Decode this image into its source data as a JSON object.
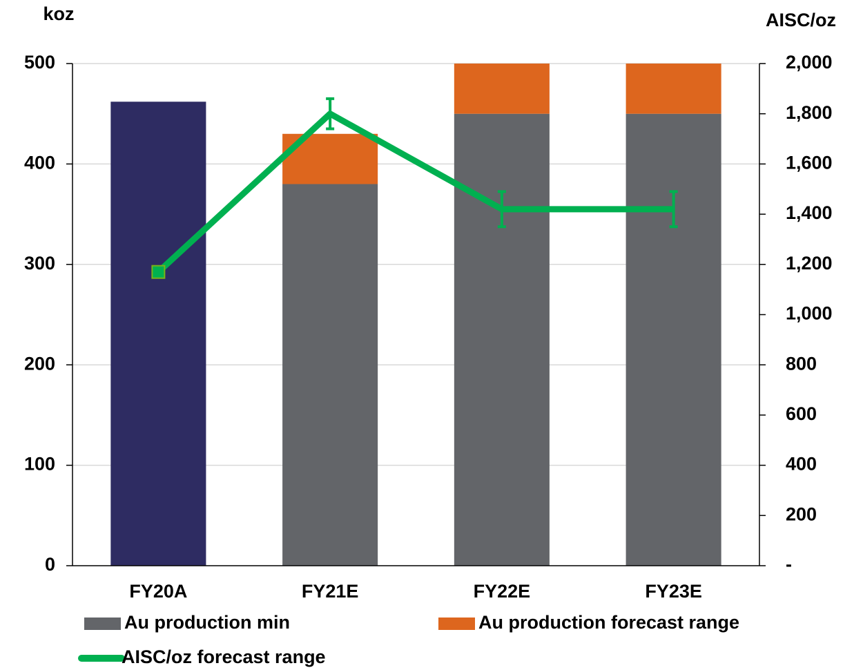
{
  "chart_data": {
    "type": "bar",
    "y_label": "koz",
    "y2_label": "AISC/oz",
    "categories": [
      "FY20A",
      "FY21E",
      "FY22E",
      "FY23E"
    ],
    "series": [
      {
        "color": "#2e2c62",
        "values": [
          462,
          null,
          null,
          null
        ]
      },
      {
        "name": "Au production min",
        "color": "#636569",
        "values": [
          null,
          380,
          450,
          450
        ]
      },
      {
        "name": "Au production forecast range",
        "color": "#dd661e",
        "values": [
          null,
          50,
          50,
          50
        ]
      },
      {
        "name": "AISC/oz forecast range",
        "type": "line",
        "axis": "y2",
        "color": "#00b050",
        "values": [
          1170,
          1800,
          1420,
          1420
        ],
        "errors": [
          null,
          60,
          70,
          70
        ]
      }
    ],
    "ylim": [
      0,
      500
    ],
    "yticks": [
      0,
      100,
      200,
      300,
      400,
      500
    ],
    "y2lim": [
      0,
      2000
    ],
    "y2ticks": [
      {
        "value": 0,
        "label": "-"
      },
      200,
      400,
      600,
      800,
      {
        "value": 1000,
        "label": "1,000"
      },
      {
        "value": 1200,
        "label": "1,200"
      },
      {
        "value": 1400,
        "label": "1,400"
      },
      {
        "value": 1600,
        "label": "1,600"
      },
      {
        "value": 1800,
        "label": "1,800"
      },
      {
        "value": 2000,
        "label": "2,000"
      }
    ],
    "grid": true,
    "legend": "bottom"
  }
}
